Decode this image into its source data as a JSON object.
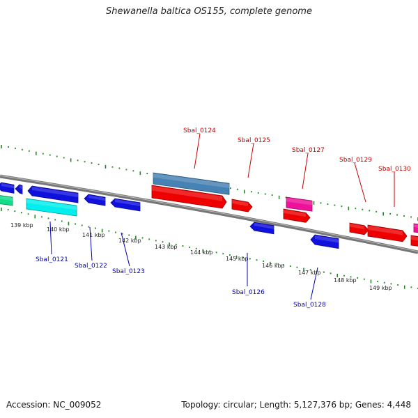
{
  "title": "Shewanella baltica OS155, complete genome",
  "footer": {
    "accession": "Accession: NC_009052",
    "summary": "Topology: circular; Length: 5,127,376 bp; Genes: 4,448"
  },
  "colors": {
    "forward_gene": "#ee0000",
    "reverse_gene": "#1111dd",
    "teal_feature": "#00eeee",
    "green_feature": "#11dd88",
    "magenta_feature": "#ee1199",
    "steel_feature": "#4682b4",
    "backbone": "#777777",
    "tick": "#228822",
    "label_red": "#cc0000",
    "label_blue": "#0000bb"
  },
  "scale_labels": [
    "139 kbp",
    "140 kbp",
    "141 kbp",
    "142 kbp",
    "143 kbp",
    "144 kbp",
    "145 kbp",
    "146 kbp",
    "147 kbp",
    "148 kbp",
    "149 kbp"
  ],
  "gene_labels": {
    "top": [
      "Sbal_0124",
      "Sbal_0125",
      "Sbal_0127",
      "Sbal_0129",
      "Sbal_0130"
    ],
    "bottom": [
      "Sbal_0121",
      "Sbal_0122",
      "Sbal_0123",
      "Sbal_0126",
      "Sbal_0128"
    ]
  }
}
